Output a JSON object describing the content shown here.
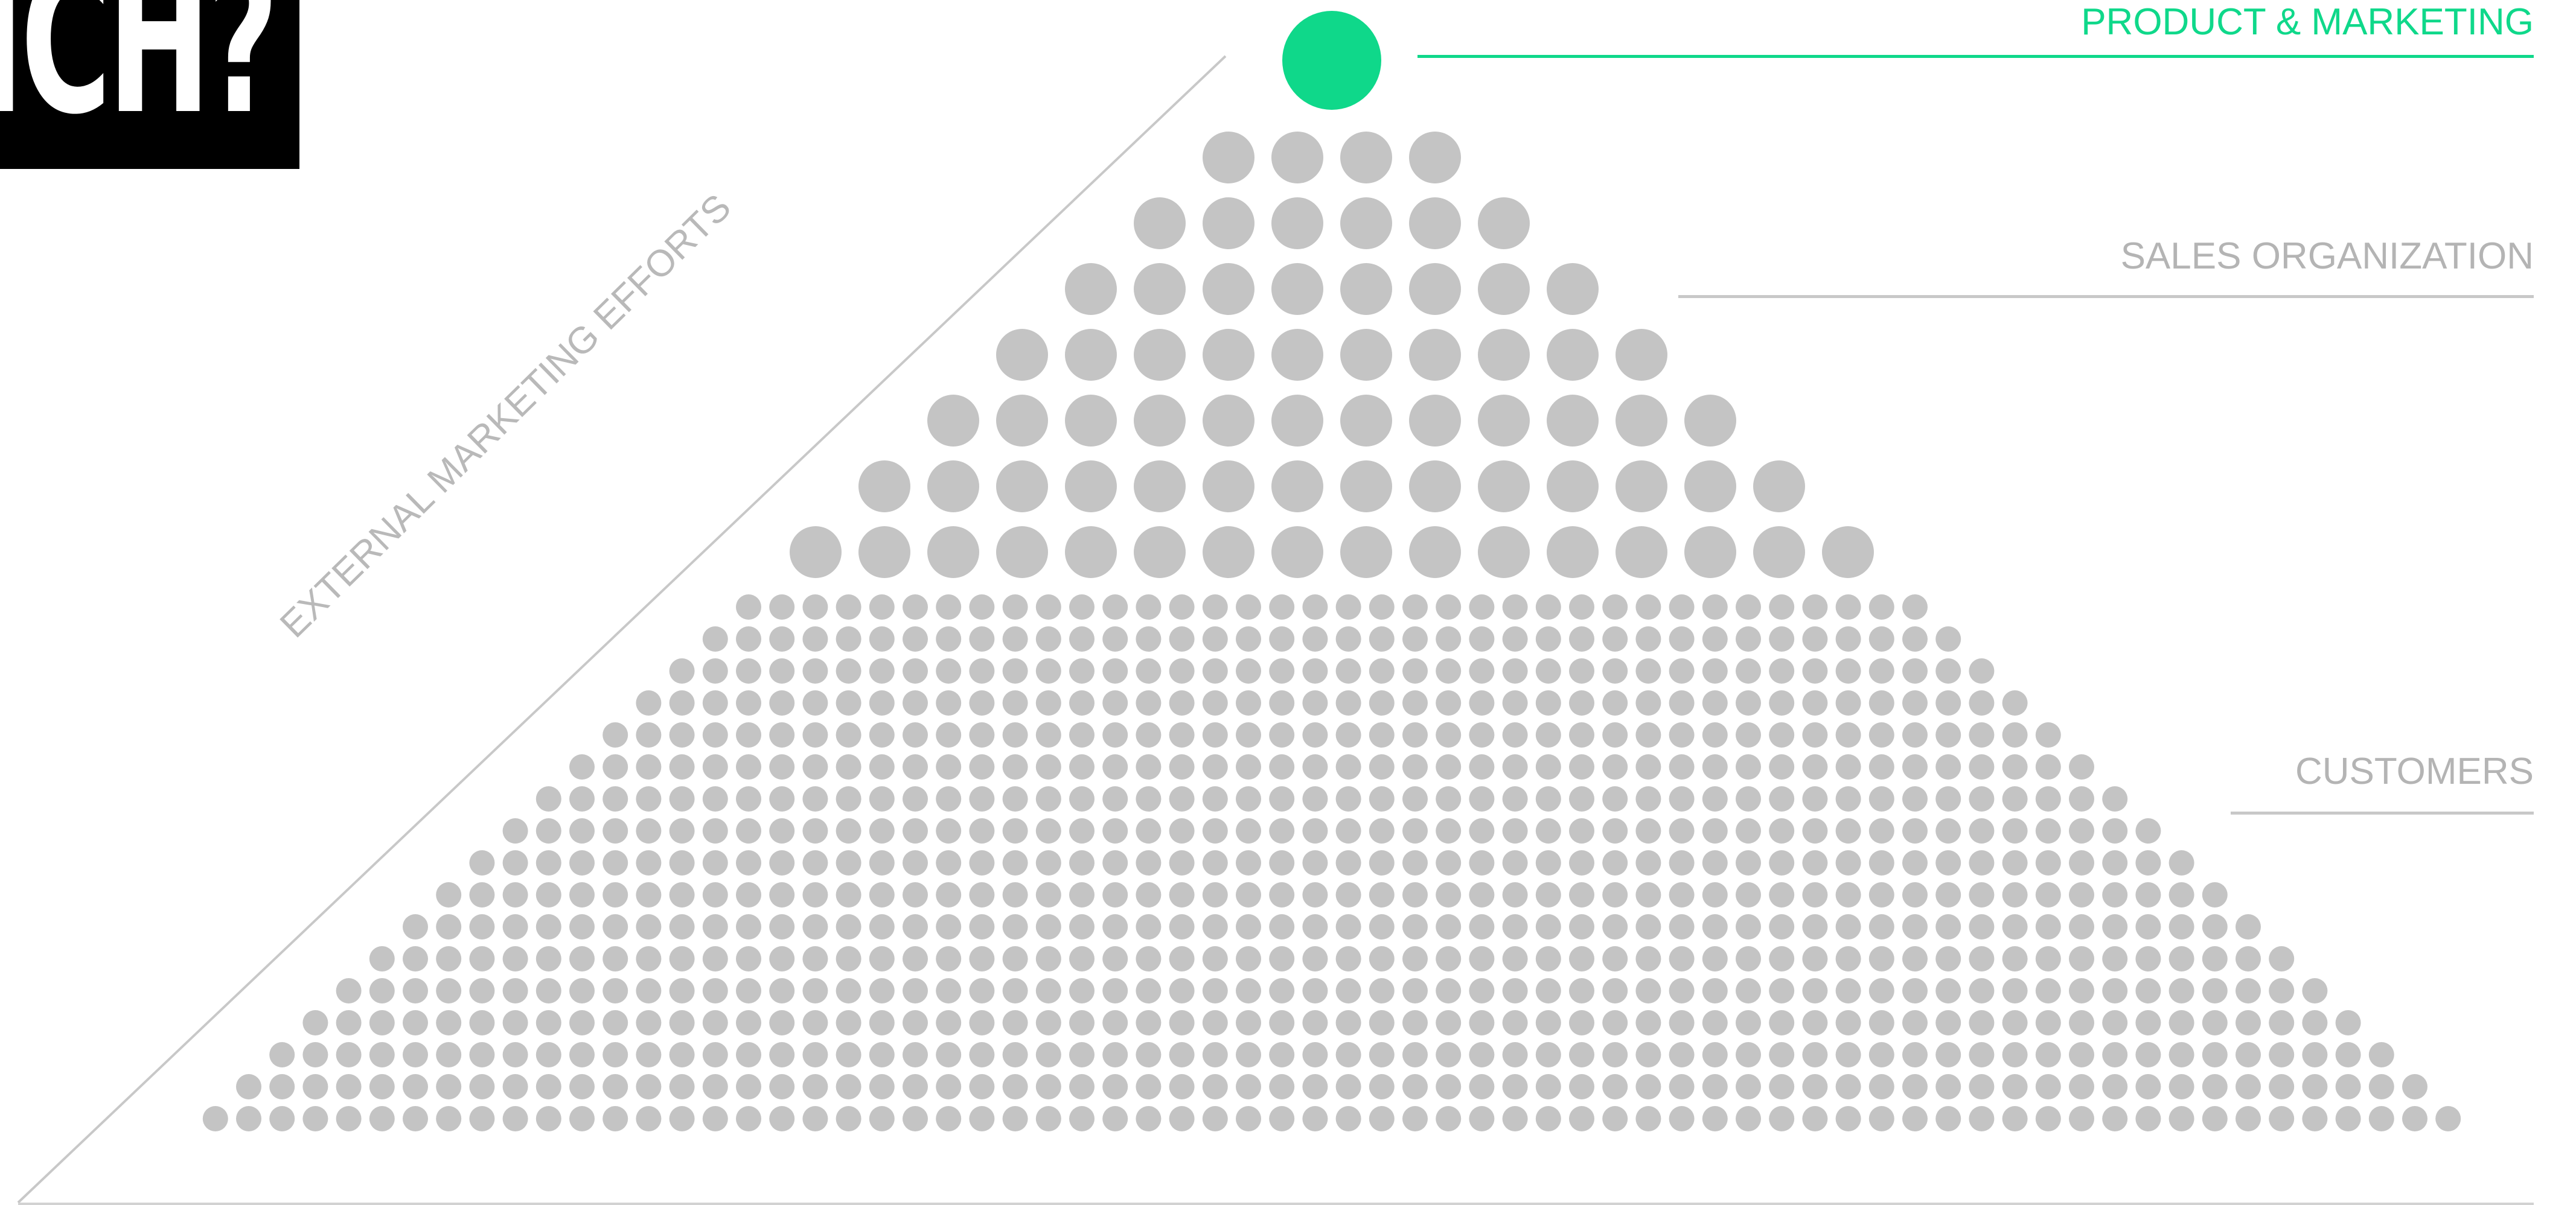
{
  "logo": {
    "text": "ICH?"
  },
  "labels": {
    "product": "PRODUCT & MARKETING",
    "sales": "SALES ORGANIZATION",
    "customers": "CUSTOMERS",
    "side": "EXTERNAL MARKETING EFFORTS"
  },
  "colors": {
    "accent": "#0fd88a",
    "dot": "#c4c4c4",
    "line": "#c8c8c8",
    "text_muted": "#b4b4b4",
    "logo_bg": "#000000",
    "logo_fg": "#ffffff"
  },
  "pyramid": {
    "product_dots": 1,
    "sales_rows": [
      4,
      6,
      8,
      10,
      12,
      14,
      16
    ],
    "customer_rows": [
      36,
      38,
      40,
      42,
      44,
      46,
      48,
      50,
      52,
      54,
      56,
      58,
      60,
      62,
      64,
      66,
      68
    ]
  }
}
